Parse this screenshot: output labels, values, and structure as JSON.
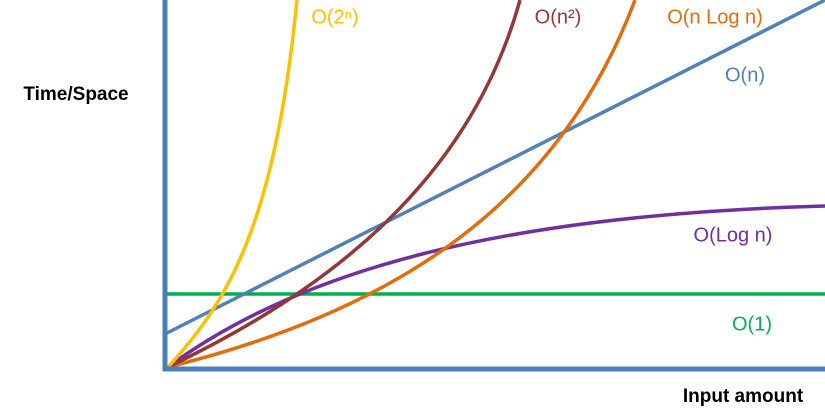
{
  "axes": {
    "y_label": "Time/Space",
    "x_label": "Input amount"
  },
  "curves": [
    {
      "label": "O(2ⁿ)",
      "color": "#ffc000"
    },
    {
      "label": "O(n²)",
      "color": "#953735"
    },
    {
      "label": "O(n Log n)",
      "color": "#e46c0a"
    },
    {
      "label": "O(n)",
      "color": "#4f81bd"
    },
    {
      "label": "O(Log n)",
      "color": "#7030a0"
    },
    {
      "label": "O(1)",
      "color": "#00b050"
    }
  ]
}
